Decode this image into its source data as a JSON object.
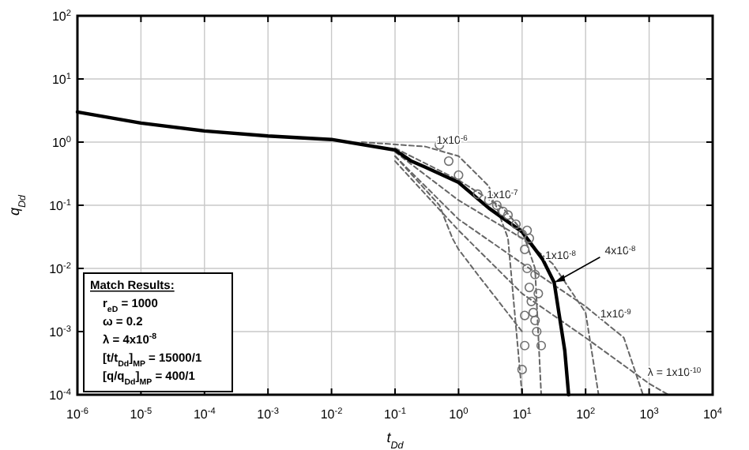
{
  "chart_data": {
    "type": "line",
    "xlabel": "t$_{Dd}$",
    "ylabel": "q$_{Dd}$",
    "log": "xy",
    "grid": true,
    "marker": "none",
    "xlim": [
      1e-06,
      10000.0
    ],
    "ylim": [
      0.0001,
      100
    ],
    "xticks": [
      {
        "value": 1e-06,
        "label": "10$^{-6}$"
      },
      {
        "value": 1e-05,
        "label": "10$^{-5}$"
      },
      {
        "value": 0.0001,
        "label": "10$^{-4}$"
      },
      {
        "value": 0.001,
        "label": "10$^{-3}$"
      },
      {
        "value": 0.01,
        "label": "10$^{-2}$"
      },
      {
        "value": 0.1,
        "label": "10$^{-1}$"
      },
      {
        "value": 1,
        "label": "10$^{0}$"
      },
      {
        "value": 10,
        "label": "10$^{1}$"
      },
      {
        "value": 100,
        "label": "10$^{2}$"
      },
      {
        "value": 1000,
        "label": "10$^{3}$"
      },
      {
        "value": 10000,
        "label": "10$^{4}$"
      }
    ],
    "yticks": [
      {
        "value": 0.0001,
        "label": "10$^{-4}$"
      },
      {
        "value": 0.001,
        "label": "10$^{-3}$"
      },
      {
        "value": 0.01,
        "label": "10$^{-2}$"
      },
      {
        "value": 0.1,
        "label": "10$^{-1}$"
      },
      {
        "value": 1,
        "label": "10$^{0}$"
      },
      {
        "value": 10,
        "label": "10$^{1}$"
      },
      {
        "value": 100,
        "label": "10$^{2}$"
      }
    ],
    "series": [
      {
        "type": "line",
        "line_style": "dashed",
        "color": "#666666",
        "x": [
          0.03,
          0.3,
          1,
          3,
          6,
          10
        ],
        "values": [
          1.0,
          0.85,
          0.6,
          0.2,
          0.03,
          0.0001
        ]
      },
      {
        "type": "line",
        "line_style": "dashed",
        "color": "#666666",
        "x": [
          0.1,
          1,
          5,
          10,
          16,
          20
        ],
        "values": [
          0.8,
          0.25,
          0.09,
          0.04,
          0.01,
          0.0001
        ]
      },
      {
        "type": "line",
        "line_style": "dashed",
        "color": "#666666",
        "x": [
          0.1,
          1,
          10,
          30,
          100,
          160
        ],
        "values": [
          0.7,
          0.12,
          0.03,
          0.012,
          0.002,
          0.0001
        ]
      },
      {
        "type": "line",
        "line_style": "dashed",
        "color": "#666666",
        "x": [
          0.1,
          1,
          10,
          100,
          400,
          800
        ],
        "values": [
          0.6,
          0.06,
          0.012,
          0.0025,
          0.0008,
          0.0001
        ]
      },
      {
        "type": "line",
        "line_style": "dashed",
        "color": "#666666",
        "x": [
          0.1,
          1,
          10,
          100,
          1000,
          2000
        ],
        "values": [
          0.5,
          0.04,
          0.004,
          0.0008,
          0.00015,
          0.0001
        ]
      },
      {
        "type": "line",
        "line_style": "dashed",
        "color": "#666666",
        "x": [
          0.1,
          0.5,
          0.8,
          1,
          2,
          10
        ],
        "values": [
          0.6,
          0.1,
          0.03,
          0.02,
          0.008,
          0.001
        ]
      },
      {
        "line_style": "solid",
        "color": "#000000",
        "x": [
          1e-06,
          1e-05,
          0.0001,
          0.001,
          0.01,
          0.1,
          0.18,
          0.3,
          1,
          3,
          10,
          21,
          32,
          47,
          54
        ],
        "values": [
          3.0,
          2.0,
          1.5,
          1.25,
          1.1,
          0.75,
          0.5,
          0.4,
          0.23,
          0.09,
          0.038,
          0.014,
          0.006,
          0.0005,
          0.0001
        ]
      },
      {
        "type": "scatter",
        "marker": "circle",
        "color": "#707070",
        "x": [
          0.5,
          0.7,
          1,
          2,
          3,
          4,
          5,
          6,
          8,
          10,
          12,
          13,
          11,
          12,
          13,
          14,
          15,
          16,
          17,
          11,
          11,
          10,
          20,
          18,
          16
        ],
        "values": [
          0.9,
          0.5,
          0.3,
          0.15,
          0.12,
          0.1,
          0.08,
          0.07,
          0.05,
          0.035,
          0.04,
          0.03,
          0.02,
          0.01,
          0.005,
          0.003,
          0.002,
          0.0015,
          0.001,
          0.0018,
          0.0006,
          0.00025,
          0.0006,
          0.004,
          0.008
        ]
      }
    ],
    "annotations": [
      {
        "text": "1x10$^{-6}$",
        "x": 0.45,
        "y": 0.95
      },
      {
        "text": "1x10$^{-7}$",
        "x": 2.8,
        "y": 0.13
      },
      {
        "text": "1x10$^{-8}$",
        "x": 23,
        "y": 0.014
      },
      {
        "text": "4x10$^{-8}$",
        "x": 32,
        "y": 0.006
      },
      {
        "text": "1x10$^{-9}$",
        "x": 170,
        "y": 0.0017
      },
      {
        "text": "λ = 1x10$^{-10}$",
        "x": 950,
        "y": 0.0002
      },
      "Match Results:",
      "r$_{eD}$ = 1000",
      "ω = 0.2",
      "λ = 4x10$^{-8}$",
      "[t/t$_{Dd}$]$_{MP}$ = 15000/1",
      "[q/q$_{Dd}$]$_{MP}$ = 400/1"
    ]
  }
}
